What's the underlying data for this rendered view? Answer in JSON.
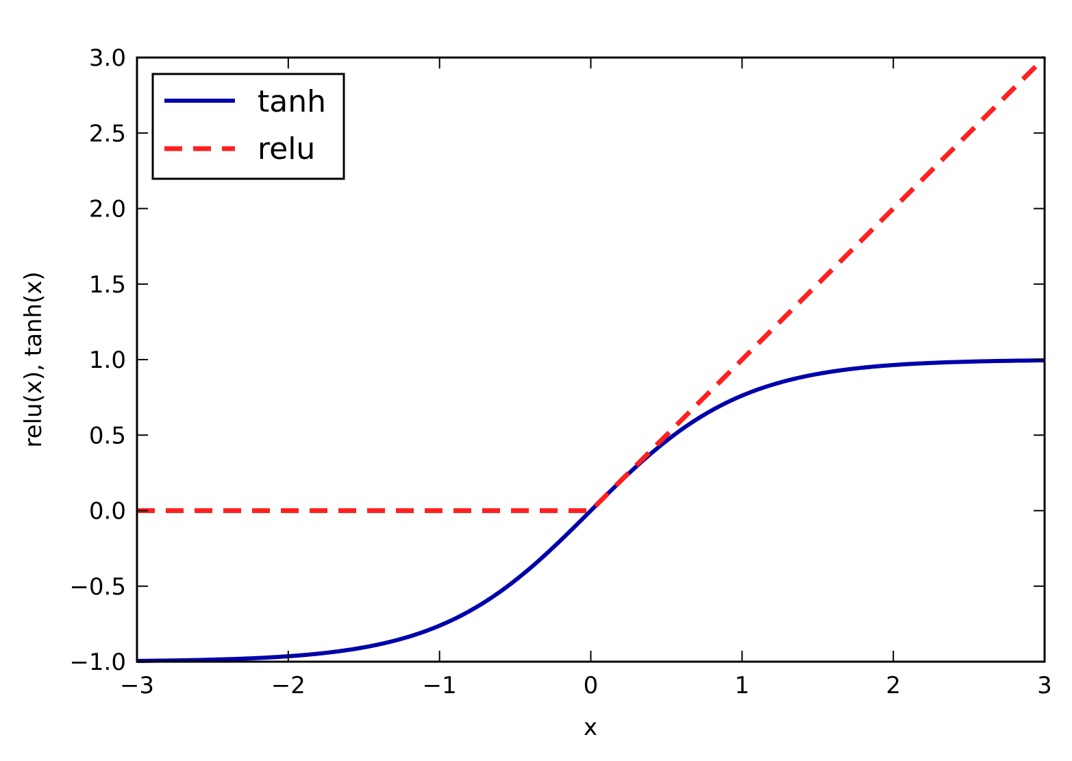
{
  "chart_data": {
    "type": "line",
    "title": "",
    "xlabel": "x",
    "ylabel": "relu(x), tanh(x)",
    "xlim": [
      -3,
      3
    ],
    "ylim": [
      -1.0,
      3.0
    ],
    "xticks": [
      -3,
      -2,
      -1,
      0,
      1,
      2,
      3
    ],
    "xtick_labels": [
      "−3",
      "−2",
      "−1",
      "0",
      "1",
      "2",
      "3"
    ],
    "yticks": [
      -1.0,
      -0.5,
      0.0,
      0.5,
      1.0,
      1.5,
      2.0,
      2.5,
      3.0
    ],
    "ytick_labels": [
      "−1.0",
      "−0.5",
      "0.0",
      "0.5",
      "1.0",
      "1.5",
      "2.0",
      "2.5",
      "3.0"
    ],
    "grid": false,
    "legend_position": "top-left",
    "series": [
      {
        "name": "tanh",
        "color": "#0000aa",
        "style": "solid",
        "x": [
          -3.0,
          -2.5,
          -2.0,
          -1.75,
          -1.5,
          -1.25,
          -1.0,
          -0.75,
          -0.5,
          -0.25,
          0.0,
          0.25,
          0.5,
          0.75,
          1.0,
          1.25,
          1.5,
          1.75,
          2.0,
          2.5,
          3.0
        ],
        "y": [
          -0.995,
          -0.987,
          -0.964,
          -0.941,
          -0.905,
          -0.848,
          -0.762,
          -0.635,
          -0.462,
          -0.245,
          0.0,
          0.245,
          0.462,
          0.635,
          0.762,
          0.848,
          0.905,
          0.941,
          0.964,
          0.987,
          0.995
        ]
      },
      {
        "name": "relu",
        "color": "#ff2020",
        "style": "dashed",
        "x": [
          -3.0,
          0.0,
          3.0
        ],
        "y": [
          0.0,
          0.0,
          3.0
        ]
      }
    ]
  }
}
